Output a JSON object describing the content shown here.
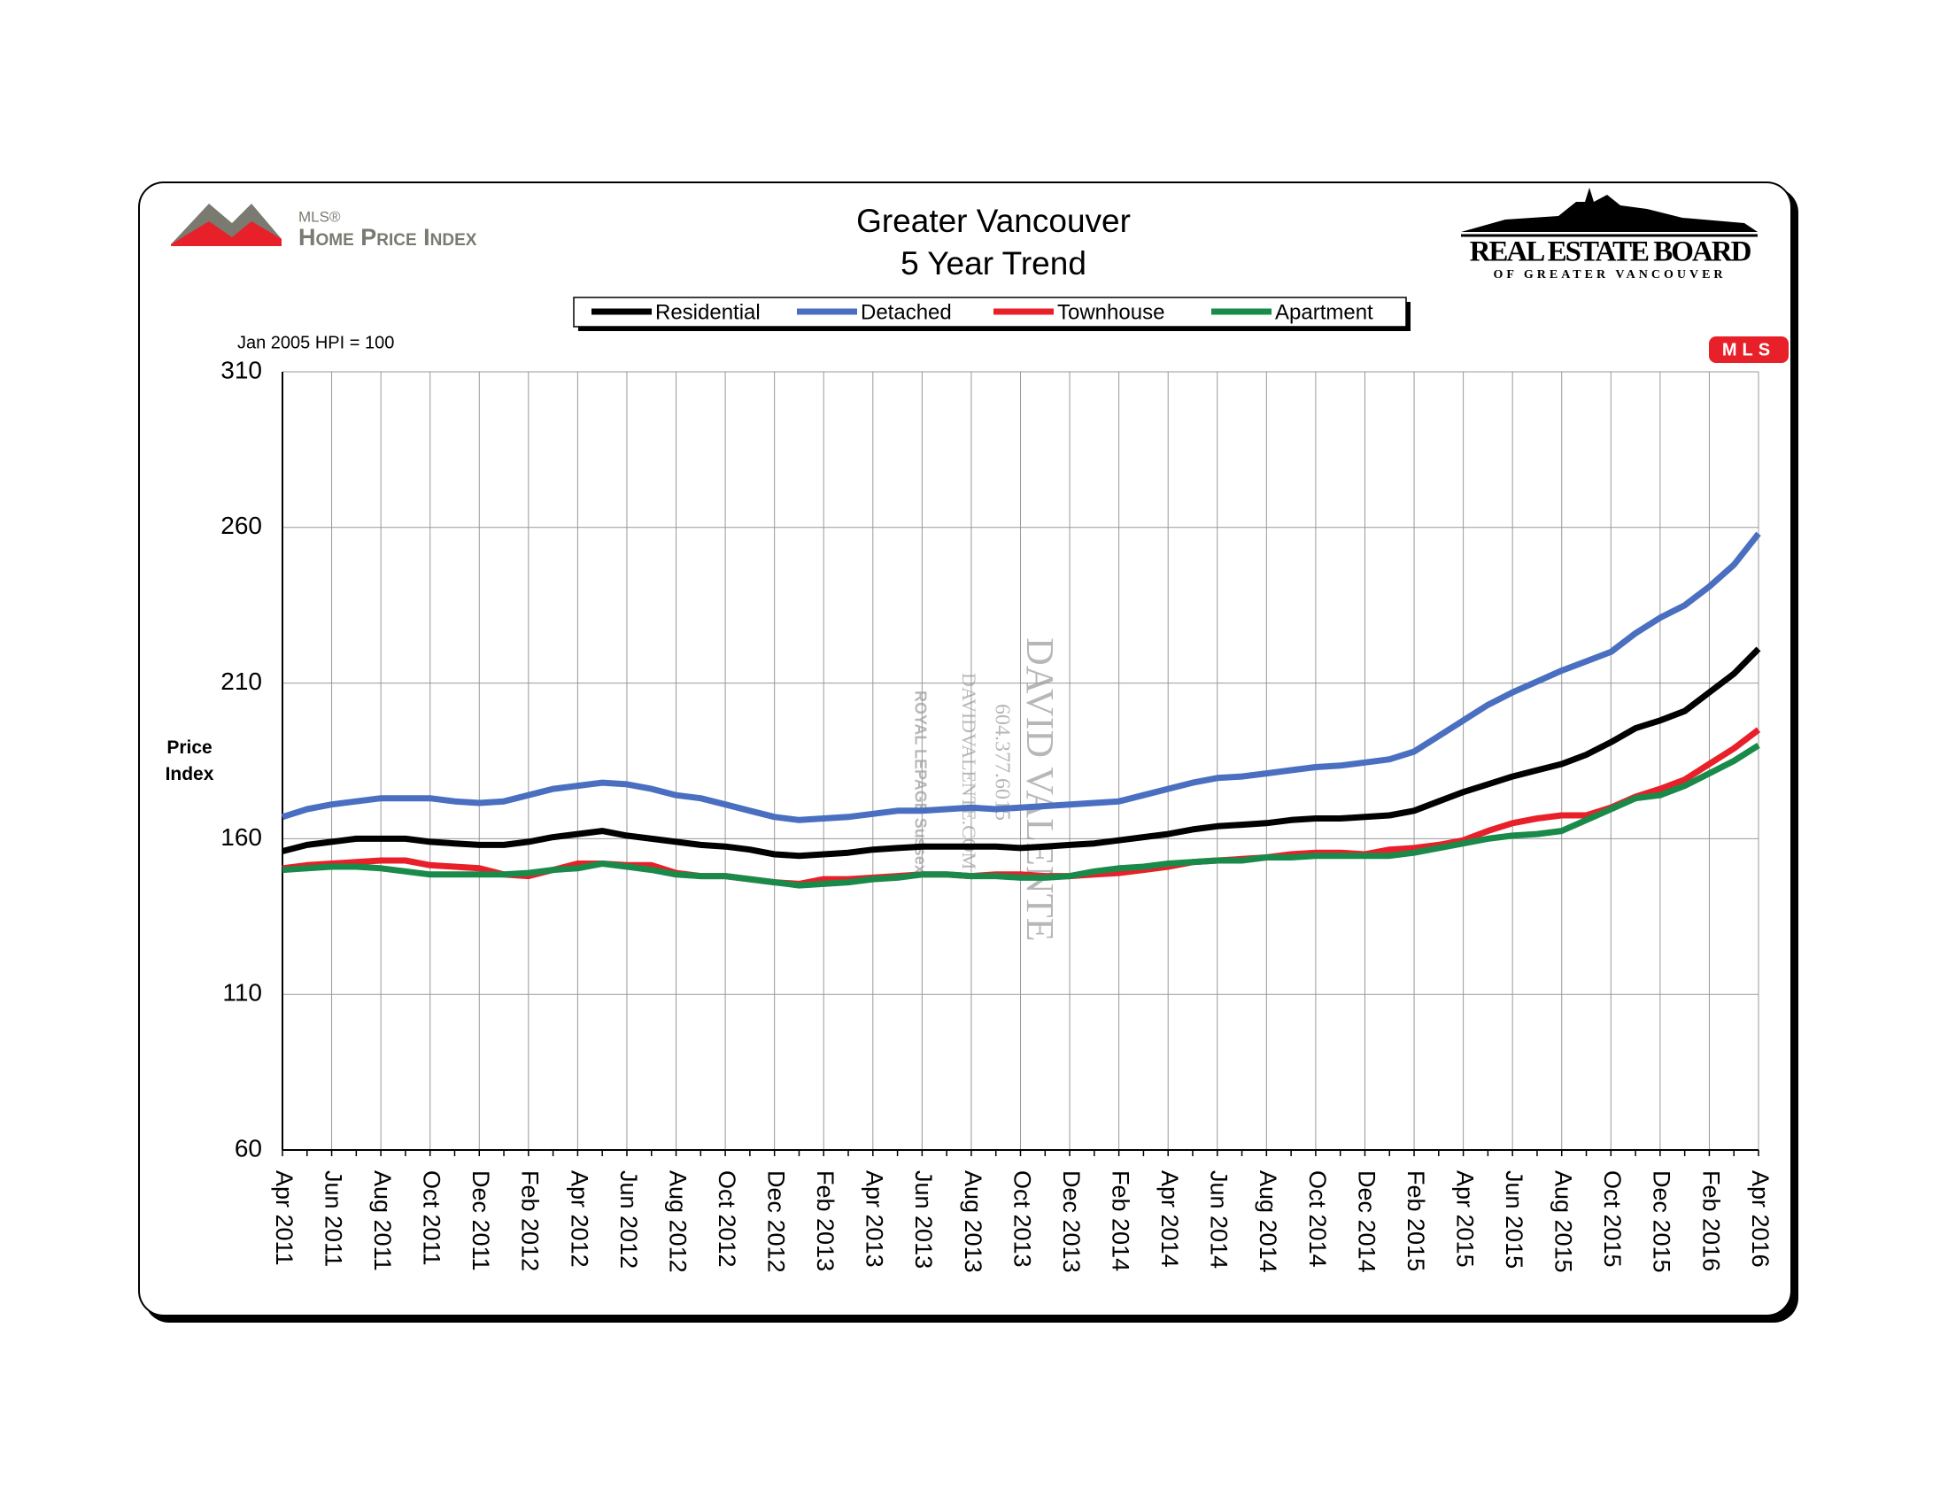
{
  "header": {
    "mls_logo_mark": "MLS®",
    "mls_logo_text": "Home Price Index",
    "board_name": "REAL ESTATE BOARD",
    "board_sub": "OF GREATER VANCOUVER",
    "badge": "MLS"
  },
  "watermark": [
    "DAVID VALENTE",
    "604.377.6015",
    "DAVIDVALENTE.COM",
    "ROYAL LEPAGE Sussex"
  ],
  "chart_data": {
    "type": "line",
    "title": "Greater Vancouver",
    "subtitle": "5 Year Trend",
    "note": "Jan 2005 HPI = 100",
    "y_label": "Price Index",
    "categories": [
      "Apr 2011",
      null,
      "Jun 2011",
      null,
      "Aug 2011",
      null,
      "Oct 2011",
      null,
      "Dec 2011",
      null,
      "Feb 2012",
      null,
      "Apr 2012",
      null,
      "Jun 2012",
      null,
      "Aug 2012",
      null,
      "Oct 2012",
      null,
      "Dec 2012",
      null,
      "Feb 2013",
      null,
      "Apr 2013",
      null,
      "Jun 2013",
      null,
      "Aug 2013",
      null,
      "Oct 2013",
      null,
      "Dec 2013",
      null,
      "Feb 2014",
      null,
      "Apr 2014",
      null,
      "Jun 2014",
      null,
      "Aug 2014",
      null,
      "Oct 2014",
      null,
      "Dec 2014",
      null,
      "Feb 2015",
      null,
      "Apr 2015",
      null,
      "Jun 2015",
      null,
      "Aug 2015",
      null,
      "Oct 2015",
      null,
      "Dec 2015",
      null,
      "Feb 2016",
      null,
      "Apr 2016"
    ],
    "series": [
      {
        "name": "Residential",
        "color": "#000000",
        "values": [
          156,
          158,
          159,
          160,
          160,
          160,
          159,
          158.5,
          158,
          158,
          159,
          160.5,
          161.5,
          162.5,
          161,
          160,
          159,
          158,
          157.5,
          156.5,
          155,
          154.5,
          155,
          155.5,
          156.5,
          157,
          157.5,
          157.5,
          157.5,
          157.5,
          157,
          157.5,
          158,
          158.5,
          159.5,
          160.5,
          161.5,
          163,
          164,
          164.5,
          165,
          166,
          166.5,
          166.5,
          167,
          167.5,
          169,
          172,
          175,
          177.5,
          180,
          182,
          184,
          187,
          191,
          195.5,
          198,
          201,
          207,
          213,
          221
        ]
      },
      {
        "name": "Detached",
        "color": "#4a6fc1",
        "values": [
          167,
          169.5,
          171,
          172,
          173,
          173,
          173,
          172,
          171.5,
          172,
          174,
          176,
          177,
          178,
          177.5,
          176,
          174,
          173,
          171,
          169,
          167,
          166,
          166.5,
          167,
          168,
          169,
          169,
          169.5,
          170,
          169.5,
          170,
          170.5,
          171,
          171.5,
          172,
          174,
          176,
          178,
          179.5,
          180,
          181,
          182,
          183,
          183.5,
          184.5,
          185.5,
          188,
          193,
          198,
          203,
          207,
          210.5,
          214,
          217,
          220,
          226,
          231,
          235,
          241,
          248,
          258
        ]
      },
      {
        "name": "Townhouse",
        "color": "#e8202a",
        "values": [
          150.5,
          151.5,
          152,
          152.5,
          153,
          153,
          151.5,
          151,
          150.5,
          148.5,
          148,
          150,
          152,
          152,
          151.5,
          151.5,
          149,
          148,
          148,
          147,
          146,
          145.5,
          147,
          147,
          147.5,
          148,
          148.5,
          148.5,
          148,
          148.5,
          148.5,
          148,
          148,
          148.5,
          149,
          150,
          151,
          152.5,
          153,
          153.5,
          154,
          155,
          155.5,
          155.5,
          155,
          156.5,
          157,
          158,
          159.5,
          162.5,
          165,
          166.5,
          167.5,
          167.5,
          170,
          173.5,
          176,
          179,
          184,
          189,
          195
        ]
      },
      {
        "name": "Apartment",
        "color": "#1a8a4a",
        "values": [
          150,
          150.5,
          151,
          151,
          150.5,
          149.5,
          148.5,
          148.5,
          148.5,
          148.5,
          149,
          150,
          150.5,
          152,
          151,
          150,
          148.5,
          148,
          148,
          147,
          146,
          145,
          145.5,
          146,
          147,
          147.5,
          148.5,
          148.5,
          148,
          148,
          147.5,
          147.5,
          148,
          149.5,
          150.5,
          151,
          152,
          152.5,
          153,
          153,
          154,
          154,
          154.5,
          154.5,
          154.5,
          154.5,
          155.5,
          157,
          158.5,
          160,
          161,
          161.5,
          162.5,
          166,
          169.5,
          173,
          174,
          177,
          181,
          185,
          190
        ]
      }
    ],
    "ylim": [
      60,
      310
    ],
    "yticks": [
      60,
      110,
      160,
      210,
      260,
      310
    ],
    "grid": true,
    "legend": "top"
  }
}
